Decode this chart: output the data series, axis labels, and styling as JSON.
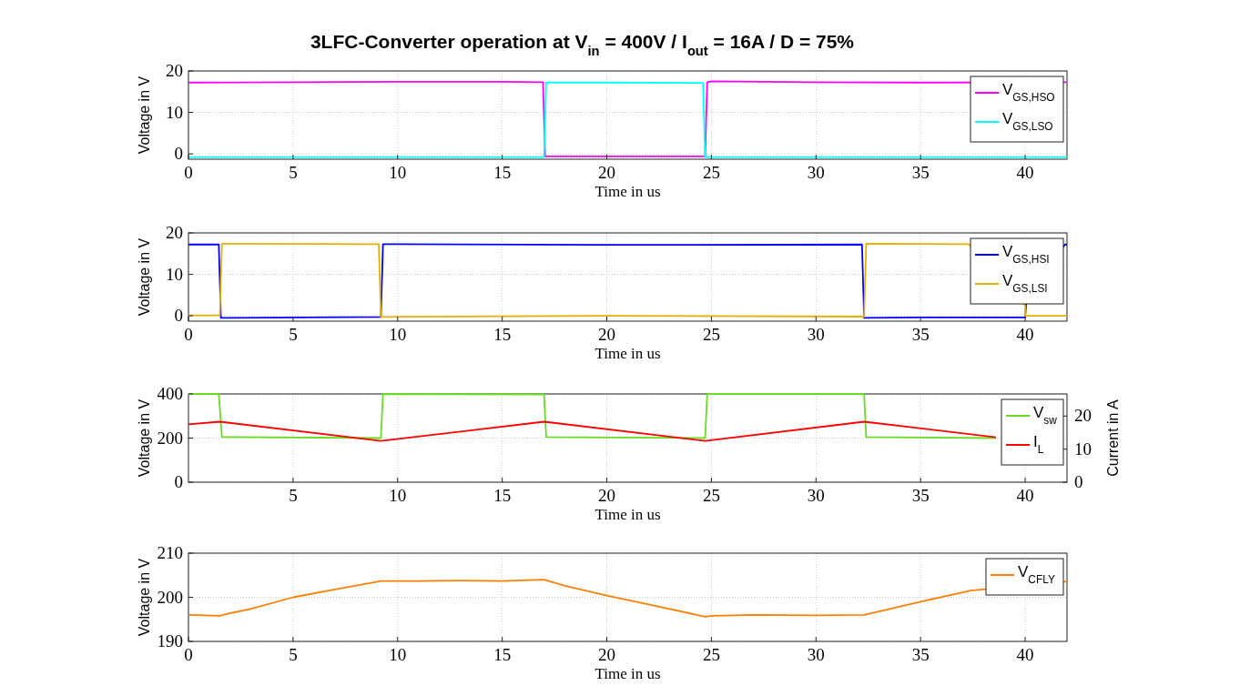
{
  "chart_data": [
    {
      "type": "line",
      "title": "3LFC-Converter operation at V$_{in}$ = 400V / I$_{out}$ = 16A / D = 75%",
      "xlabel": "Time in us",
      "ylabel": "Voltage in V",
      "xlim": [
        0,
        42
      ],
      "xticks": [
        0,
        5,
        10,
        15,
        20,
        25,
        30,
        35,
        40
      ],
      "ylim": [
        -1.3,
        20
      ],
      "yticks": [
        0,
        10,
        20
      ],
      "grid": true,
      "legend": "top right",
      "series": [
        {
          "name": "V$_{GS,HSO}$",
          "color": "#ff00ff",
          "x": [
            0,
            5,
            10,
            15,
            16.95,
            17.05,
            20,
            24.7,
            24.8,
            25,
            30,
            35,
            42
          ],
          "values": [
            17.2,
            17.3,
            17.4,
            17.4,
            17.3,
            -0.6,
            -0.6,
            -0.6,
            17.3,
            17.5,
            17.3,
            17.2,
            17.3
          ]
        },
        {
          "name": "V$_{GS,LSO}$",
          "color": "#00ffff",
          "x": [
            0,
            10,
            17.0,
            17.1,
            20,
            24.6,
            24.7,
            30,
            42
          ],
          "values": [
            -0.8,
            -0.8,
            -0.8,
            17.2,
            17.2,
            17.1,
            -0.8,
            -0.8,
            -0.8
          ]
        }
      ]
    },
    {
      "type": "line",
      "xlabel": "Time in us",
      "ylabel": "Voltage in V",
      "xlim": [
        0,
        42
      ],
      "xticks": [
        0,
        5,
        10,
        15,
        20,
        25,
        30,
        35,
        40
      ],
      "ylim": [
        -1.3,
        20
      ],
      "yticks": [
        0,
        10,
        20
      ],
      "grid": true,
      "legend": "top right",
      "series": [
        {
          "name": "V$_{GS,HSI}$",
          "color": "#0000ff",
          "x": [
            0,
            1.45,
            1.55,
            9.2,
            9.3,
            10,
            20,
            32.2,
            32.3,
            35,
            40.0,
            40.05,
            41.9,
            42
          ],
          "values": [
            17.2,
            17.2,
            -0.5,
            -0.3,
            17.3,
            17.3,
            17.1,
            17.2,
            -0.5,
            -0.4,
            -0.4,
            3,
            17.2,
            17.2
          ]
        },
        {
          "name": "V$_{GS,LSI}$",
          "color": "#e6b000",
          "x": [
            0,
            1.5,
            1.6,
            9.1,
            9.2,
            20,
            32.3,
            32.4,
            37.3,
            40.0,
            40.0,
            42
          ],
          "values": [
            0.1,
            0.1,
            17.4,
            17.3,
            -0.3,
            0,
            -0.2,
            17.4,
            17.3,
            2.5,
            0,
            0
          ]
        }
      ]
    },
    {
      "type": "line",
      "xlabel": "Time in us",
      "ylabel": "Voltage in V",
      "y2label": "Current in A",
      "xlim": [
        0,
        42
      ],
      "xticks": [
        5,
        10,
        15,
        20,
        25,
        30,
        35,
        40
      ],
      "ylim": [
        0,
        400
      ],
      "yticks": [
        0,
        200,
        400
      ],
      "y2lim": [
        0,
        26.7
      ],
      "y2ticks": [
        0,
        10,
        20
      ],
      "grid": true,
      "legend": "top right",
      "series": [
        {
          "name": "V$_{sw}$",
          "color": "#66dd22",
          "x": [
            0,
            1.45,
            1.6,
            9.2,
            9.3,
            17.0,
            17.1,
            24.7,
            24.8,
            32.3,
            32.4,
            38.6
          ],
          "values": [
            400,
            400,
            205,
            200,
            400,
            398,
            205,
            200,
            400,
            400,
            205,
            200
          ]
        },
        {
          "name": "I$_{L}$",
          "color": "#ff0000",
          "axis": "y2",
          "x": [
            0,
            1.5,
            9.2,
            17.0,
            24.7,
            32.3,
            38.6
          ],
          "values": [
            17.5,
            18.3,
            12.5,
            18.3,
            12.5,
            18.3,
            13.6
          ]
        }
      ]
    },
    {
      "type": "line",
      "xlabel": "Time in us",
      "ylabel": "Voltage in V",
      "xlim": [
        0,
        42
      ],
      "xticks": [
        0,
        5,
        10,
        15,
        20,
        25,
        30,
        35,
        40
      ],
      "ylim": [
        190,
        210
      ],
      "yticks": [
        190,
        200,
        210
      ],
      "grid": true,
      "legend": "top right",
      "series": [
        {
          "name": "V$_{CFLY}$",
          "color": "#ff8000",
          "x": [
            0,
            1.5,
            2,
            3,
            5,
            7,
            9.2,
            11,
            13,
            15,
            17,
            18,
            20,
            22,
            24.7,
            25,
            27,
            30,
            32.3,
            33,
            35,
            37.4,
            42
          ],
          "values": [
            196,
            195.8,
            196.4,
            197.4,
            200,
            201.8,
            203.7,
            203.7,
            203.8,
            203.7,
            204,
            202.6,
            200.4,
            198.4,
            195.6,
            195.8,
            196,
            195.9,
            196,
            196.8,
            199,
            201.5,
            203.6
          ]
        }
      ]
    }
  ]
}
